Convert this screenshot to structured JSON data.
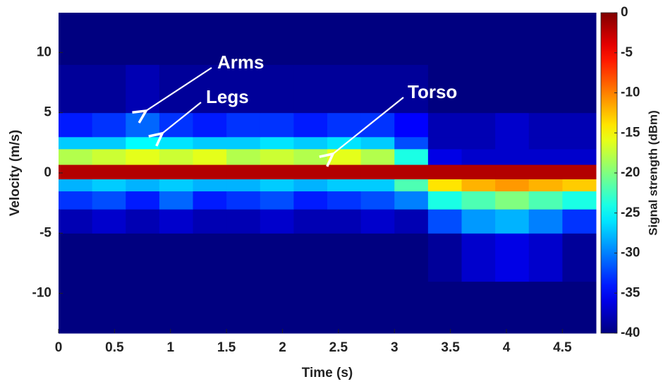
{
  "chart_data": {
    "type": "spectrogram",
    "x_label": "Time (s)",
    "y_label": "Velocity (m/s)",
    "colorbar_label": "Signal strength (dBm)",
    "xlim": [
      0,
      4.8
    ],
    "xticks": [
      0,
      0.5,
      1,
      1.5,
      2,
      2.5,
      3,
      3.5,
      4,
      4.5
    ],
    "ylim": [
      -13.3,
      13.3
    ],
    "yticks": [
      -10,
      -5,
      0,
      5,
      10
    ],
    "clim": [
      -40,
      0
    ],
    "cticks": [
      0,
      -5,
      -10,
      -15,
      -20,
      -25,
      -30,
      -35,
      -40
    ],
    "colormap": "jet",
    "xbins": [
      0,
      0.3,
      0.6,
      0.9,
      1.2,
      1.5,
      1.8,
      2.1,
      2.4,
      2.7,
      3.0,
      3.3,
      3.6,
      3.9,
      4.2,
      4.5,
      4.8
    ],
    "ybins": [
      -13.3,
      -9,
      -5,
      -3,
      -1.5,
      -0.5,
      0.7,
      2,
      3,
      5,
      9,
      13.3
    ],
    "z": [
      [
        -40,
        -40,
        -40,
        -40,
        -40,
        -40,
        -40,
        -40,
        -40,
        -40,
        -40,
        -40,
        -40,
        -40,
        -40,
        -40
      ],
      [
        -40,
        -40,
        -40,
        -40,
        -40,
        -40,
        -40,
        -40,
        -40,
        -40,
        -40,
        -39,
        -37,
        -36,
        -37,
        -39
      ],
      [
        -38,
        -37,
        -38,
        -37,
        -38,
        -38,
        -37,
        -38,
        -38,
        -37,
        -38,
        -32,
        -29,
        -28,
        -30,
        -33
      ],
      [
        -33,
        -32,
        -34,
        -31,
        -34,
        -33,
        -32,
        -34,
        -33,
        -32,
        -30,
        -24,
        -22,
        -20,
        -22,
        -24
      ],
      [
        -28,
        -27,
        -28,
        -27,
        -28,
        -28,
        -27,
        -28,
        -27,
        -27,
        -22,
        -14,
        -12,
        -11,
        -12,
        -13
      ],
      [
        -2,
        -2,
        -2,
        -2,
        -2,
        -2,
        -2,
        -2,
        -2,
        -2,
        -2,
        -2,
        -2,
        -2,
        -2,
        -2
      ],
      [
        -18,
        -17,
        -16,
        -17,
        -16,
        -18,
        -17,
        -18,
        -16,
        -18,
        -24,
        -36,
        -37,
        -37,
        -37,
        -37
      ],
      [
        -27,
        -27,
        -25,
        -26,
        -27,
        -27,
        -26,
        -27,
        -26,
        -27,
        -32,
        -38,
        -38,
        -37,
        -38,
        -38
      ],
      [
        -34,
        -33,
        -31,
        -33,
        -34,
        -33,
        -33,
        -34,
        -33,
        -33,
        -35,
        -38,
        -38,
        -37,
        -38,
        -38
      ],
      [
        -39,
        -39,
        -38,
        -39,
        -39,
        -39,
        -39,
        -39,
        -39,
        -39,
        -39,
        -40,
        -40,
        -40,
        -40,
        -40
      ],
      [
        -40,
        -40,
        -40,
        -40,
        -40,
        -40,
        -40,
        -40,
        -40,
        -40,
        -40,
        -40,
        -40,
        -40,
        -40,
        -40
      ]
    ],
    "annotations": [
      "Arms",
      "Legs",
      "Torso"
    ]
  }
}
